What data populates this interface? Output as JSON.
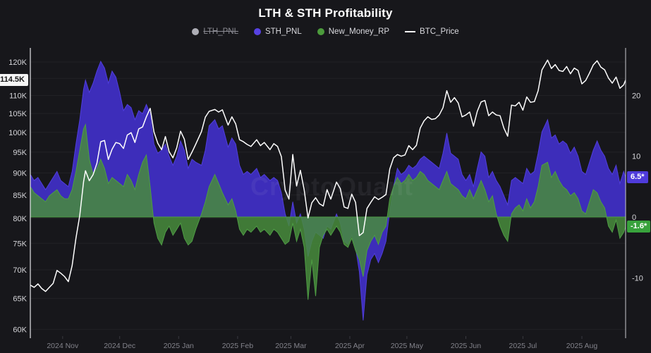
{
  "title": "LTH & STH Profitability",
  "watermark": "CryptoQuant",
  "legend": [
    {
      "label": "LTH_PNL",
      "color": "#aeaeb6",
      "marker": "dot",
      "disabled": true
    },
    {
      "label": "STH_PNL",
      "color": "#5742e3",
      "marker": "dot",
      "disabled": false
    },
    {
      "label": "New_Money_RP",
      "color": "#4c9b3c",
      "marker": "dot",
      "disabled": false
    },
    {
      "label": "BTC_Price",
      "color": "#ffffff",
      "marker": "line",
      "disabled": false
    }
  ],
  "badges": {
    "btc": {
      "text": "114.5K",
      "value": 114.5
    },
    "sth": {
      "text": "6.5*",
      "value": 6.5
    },
    "nm": {
      "text": "-1.6*",
      "value": -1.6
    }
  },
  "chart_data": {
    "type": "area+line",
    "left_axis": {
      "scale": "log",
      "unit": "K USD",
      "ylim": [
        60,
        120
      ],
      "grid_values": [
        120,
        115,
        110,
        105,
        100,
        95,
        90,
        85,
        80,
        75,
        70,
        65,
        60
      ],
      "tick_labels": [
        "120K",
        "110K",
        "105K",
        "100K",
        "95K",
        "90K",
        "85K",
        "80K",
        "75K",
        "70K",
        "65K",
        "60K"
      ],
      "tick_values": [
        120,
        110,
        105,
        100,
        95,
        90,
        85,
        80,
        75,
        70,
        65,
        60
      ]
    },
    "right_axis": {
      "scale": "linear",
      "ylim": [
        -19.9,
        27.6
      ],
      "tick_labels": [
        "20",
        "10",
        "0",
        "-10"
      ],
      "tick_values": [
        20,
        10,
        0,
        -10
      ]
    },
    "x_axis": {
      "start": "2024-10-15",
      "end": "2025-08-24",
      "months": [
        {
          "label": "2024 Nov",
          "date": "2024-11-01"
        },
        {
          "label": "2024 Dec",
          "date": "2024-12-01"
        },
        {
          "label": "2025 Jan",
          "date": "2025-01-01"
        },
        {
          "label": "2025 Feb",
          "date": "2025-02-01"
        },
        {
          "label": "2025 Mar",
          "date": "2025-03-01"
        },
        {
          "label": "2025 Apr",
          "date": "2025-04-01"
        },
        {
          "label": "2025 May",
          "date": "2025-05-01"
        },
        {
          "label": "2025 Jun",
          "date": "2025-06-01"
        },
        {
          "label": "2025 Jul",
          "date": "2025-07-01"
        },
        {
          "label": "2025 Aug",
          "date": "2025-08-01"
        }
      ]
    },
    "series": [
      {
        "name": "STH_PNL",
        "axis": "right",
        "kind": "area",
        "fill": "#3d2dba",
        "stroke": "#503edc",
        "col": 2
      },
      {
        "name": "New_Money_RP",
        "axis": "right",
        "kind": "area",
        "fill": "rgba(72,140,60,0.85)",
        "stroke": "#4e9c44",
        "col": 3
      },
      {
        "name": "BTC_Price",
        "axis": "left",
        "kind": "line",
        "stroke": "#ffffff",
        "col": 1
      }
    ],
    "columns": [
      "date",
      "btc_price_k",
      "sth_pnl",
      "new_money_rp"
    ],
    "points": [
      [
        "2024-10-15",
        67.3,
        7.0,
        5.0
      ],
      [
        "2024-10-17",
        66.9,
        6.0,
        4.0
      ],
      [
        "2024-10-19",
        67.5,
        6.5,
        3.5
      ],
      [
        "2024-10-21",
        66.7,
        5.5,
        3.0
      ],
      [
        "2024-10-23",
        66.2,
        4.5,
        2.5
      ],
      [
        "2024-10-25",
        66.9,
        5.5,
        3.5
      ],
      [
        "2024-10-27",
        67.6,
        6.5,
        4.0
      ],
      [
        "2024-10-29",
        69.9,
        7.5,
        4.5
      ],
      [
        "2024-10-31",
        69.4,
        6.0,
        3.5
      ],
      [
        "2024-11-02",
        68.8,
        5.5,
        3.0
      ],
      [
        "2024-11-04",
        67.9,
        5.0,
        3.0
      ],
      [
        "2024-11-06",
        70.8,
        7.5,
        4.5
      ],
      [
        "2024-11-08",
        76.0,
        12.0,
        7.5
      ],
      [
        "2024-11-10",
        80.6,
        16.0,
        11.0
      ],
      [
        "2024-11-12",
        88.0,
        21.0,
        14.5
      ],
      [
        "2024-11-13",
        90.5,
        22.5,
        15.2
      ],
      [
        "2024-11-15",
        88.2,
        20.5,
        9.5
      ],
      [
        "2024-11-17",
        89.6,
        22.0,
        7.0
      ],
      [
        "2024-11-19",
        92.3,
        24.0,
        8.0
      ],
      [
        "2024-11-21",
        97.6,
        25.6,
        9.5
      ],
      [
        "2024-11-23",
        97.9,
        24.5,
        8.0
      ],
      [
        "2024-11-25",
        93.2,
        22.0,
        5.5
      ],
      [
        "2024-11-27",
        95.7,
        24.0,
        6.5
      ],
      [
        "2024-11-29",
        97.4,
        23.0,
        6.0
      ],
      [
        "2024-12-01",
        97.1,
        20.5,
        5.5
      ],
      [
        "2024-12-03",
        95.9,
        17.5,
        5.0
      ],
      [
        "2024-12-05",
        99.3,
        18.5,
        7.0
      ],
      [
        "2024-12-07",
        99.9,
        18.0,
        6.0
      ],
      [
        "2024-12-09",
        97.4,
        16.0,
        4.5
      ],
      [
        "2024-12-11",
        100.9,
        17.5,
        7.0
      ],
      [
        "2024-12-13",
        101.4,
        17.0,
        9.0
      ],
      [
        "2024-12-15",
        104.1,
        18.5,
        10.2
      ],
      [
        "2024-12-17",
        106.4,
        17.0,
        5.0
      ],
      [
        "2024-12-19",
        100.1,
        12.0,
        -1.0
      ],
      [
        "2024-12-21",
        97.2,
        10.5,
        -3.5
      ],
      [
        "2024-12-23",
        95.6,
        11.0,
        -4.6
      ],
      [
        "2024-12-25",
        98.9,
        12.0,
        -2.5
      ],
      [
        "2024-12-27",
        95.1,
        10.0,
        -1.5
      ],
      [
        "2024-12-29",
        93.6,
        8.5,
        -3.0
      ],
      [
        "2024-12-31",
        96.1,
        10.0,
        -2.0
      ],
      [
        "2025-01-02",
        100.3,
        12.5,
        -1.0
      ],
      [
        "2025-01-04",
        98.2,
        11.0,
        -3.5
      ],
      [
        "2025-01-06",
        93.2,
        8.0,
        -4.6
      ],
      [
        "2025-01-08",
        95.0,
        9.5,
        -4.0
      ],
      [
        "2025-01-10",
        97.0,
        9.0,
        -2.0
      ],
      [
        "2025-01-13",
        100.2,
        8.5,
        0.5
      ],
      [
        "2025-01-15",
        104.0,
        11.0,
        2.5
      ],
      [
        "2025-01-17",
        105.6,
        15.0,
        5.0
      ],
      [
        "2025-01-20",
        106.1,
        16.0,
        7.0
      ],
      [
        "2025-01-22",
        105.4,
        14.5,
        5.5
      ],
      [
        "2025-01-24",
        106.0,
        15.0,
        4.0
      ],
      [
        "2025-01-27",
        101.9,
        11.5,
        2.0
      ],
      [
        "2025-01-29",
        104.1,
        13.0,
        3.0
      ],
      [
        "2025-01-31",
        102.2,
        12.0,
        1.0
      ],
      [
        "2025-02-02",
        98.1,
        8.5,
        -2.0
      ],
      [
        "2025-02-04",
        97.6,
        7.0,
        -3.0
      ],
      [
        "2025-02-06",
        96.9,
        7.5,
        -2.0
      ],
      [
        "2025-02-08",
        96.4,
        7.0,
        -2.5
      ],
      [
        "2025-02-11",
        98.1,
        8.0,
        -1.5
      ],
      [
        "2025-02-13",
        96.6,
        6.5,
        -2.5
      ],
      [
        "2025-02-15",
        97.4,
        7.0,
        -2.0
      ],
      [
        "2025-02-18",
        95.6,
        6.0,
        -3.0
      ],
      [
        "2025-02-20",
        97.1,
        6.5,
        -2.0
      ],
      [
        "2025-02-22",
        96.4,
        6.0,
        -2.5
      ],
      [
        "2025-02-24",
        93.9,
        4.0,
        -3.5
      ],
      [
        "2025-02-26",
        86.1,
        0.5,
        -4.5
      ],
      [
        "2025-02-28",
        84.1,
        -1.5,
        -4.0
      ],
      [
        "2025-03-02",
        94.4,
        2.5,
        -1.0
      ],
      [
        "2025-03-04",
        87.0,
        -1.0,
        -4.0
      ],
      [
        "2025-03-06",
        90.6,
        0.5,
        -2.0
      ],
      [
        "2025-03-08",
        86.1,
        -2.0,
        -5.0
      ],
      [
        "2025-03-10",
        80.1,
        -6.5,
        -13.6
      ],
      [
        "2025-03-12",
        83.3,
        -4.0,
        -7.0
      ],
      [
        "2025-03-14",
        84.4,
        -2.5,
        -13.0
      ],
      [
        "2025-03-16",
        83.1,
        -3.0,
        -5.0
      ],
      [
        "2025-03-18",
        82.6,
        -3.5,
        -3.0
      ],
      [
        "2025-03-20",
        86.2,
        -1.5,
        -2.0
      ],
      [
        "2025-03-22",
        84.1,
        -2.0,
        -3.0
      ],
      [
        "2025-03-25",
        87.9,
        0.5,
        -1.5
      ],
      [
        "2025-03-27",
        86.4,
        -1.0,
        -2.5
      ],
      [
        "2025-03-29",
        82.4,
        -4.0,
        -4.5
      ],
      [
        "2025-03-31",
        82.1,
        -4.5,
        -5.0
      ],
      [
        "2025-04-02",
        85.2,
        -3.0,
        -3.5
      ],
      [
        "2025-04-04",
        83.4,
        -5.0,
        -5.5
      ],
      [
        "2025-04-06",
        76.5,
        -9.0,
        -7.0
      ],
      [
        "2025-04-08",
        77.1,
        -17.0,
        -9.8
      ],
      [
        "2025-04-10",
        82.1,
        -9.5,
        -5.5
      ],
      [
        "2025-04-12",
        83.4,
        -7.0,
        -4.0
      ],
      [
        "2025-04-14",
        84.6,
        -6.0,
        -3.0
      ],
      [
        "2025-04-16",
        84.0,
        -7.5,
        -4.5
      ],
      [
        "2025-04-18",
        84.5,
        -6.0,
        -2.5
      ],
      [
        "2025-04-20",
        85.1,
        -4.0,
        -1.5
      ],
      [
        "2025-04-22",
        90.9,
        1.0,
        3.0
      ],
      [
        "2025-04-24",
        93.6,
        5.0,
        5.0
      ],
      [
        "2025-04-26",
        94.4,
        8.0,
        6.5
      ],
      [
        "2025-04-28",
        94.0,
        7.0,
        5.5
      ],
      [
        "2025-04-30",
        94.3,
        7.5,
        6.0
      ],
      [
        "2025-05-02",
        96.6,
        8.5,
        7.0
      ],
      [
        "2025-05-04",
        95.6,
        8.0,
        6.0
      ],
      [
        "2025-05-06",
        96.7,
        8.5,
        6.5
      ],
      [
        "2025-05-08",
        101.1,
        9.5,
        7.5
      ],
      [
        "2025-05-10",
        103.0,
        10.0,
        7.0
      ],
      [
        "2025-05-12",
        104.1,
        9.5,
        6.0
      ],
      [
        "2025-05-14",
        103.4,
        9.0,
        5.5
      ],
      [
        "2025-05-16",
        103.6,
        8.5,
        5.0
      ],
      [
        "2025-05-18",
        104.6,
        8.0,
        4.5
      ],
      [
        "2025-05-20",
        106.6,
        10.5,
        6.0
      ],
      [
        "2025-05-22",
        111.4,
        13.8,
        7.5
      ],
      [
        "2025-05-24",
        108.1,
        10.5,
        5.5
      ],
      [
        "2025-05-26",
        109.4,
        10.0,
        5.0
      ],
      [
        "2025-05-28",
        107.9,
        9.5,
        4.5
      ],
      [
        "2025-05-30",
        104.1,
        7.0,
        3.5
      ],
      [
        "2025-06-01",
        104.6,
        6.0,
        3.0
      ],
      [
        "2025-06-03",
        105.4,
        7.0,
        4.5
      ],
      [
        "2025-06-05",
        101.6,
        5.0,
        3.0
      ],
      [
        "2025-06-07",
        105.6,
        8.0,
        4.5
      ],
      [
        "2025-06-09",
        108.2,
        10.7,
        6.0
      ],
      [
        "2025-06-11",
        108.6,
        10.0,
        4.5
      ],
      [
        "2025-06-13",
        104.4,
        6.5,
        2.5
      ],
      [
        "2025-06-15",
        105.4,
        7.5,
        3.5
      ],
      [
        "2025-06-17",
        104.6,
        6.0,
        0.5
      ],
      [
        "2025-06-19",
        104.4,
        5.0,
        -1.5
      ],
      [
        "2025-06-21",
        101.1,
        3.5,
        -3.0
      ],
      [
        "2025-06-23",
        99.0,
        2.0,
        -4.0
      ],
      [
        "2025-06-25",
        107.3,
        6.0,
        0.5
      ],
      [
        "2025-06-27",
        107.1,
        6.5,
        1.5
      ],
      [
        "2025-06-29",
        108.1,
        6.0,
        2.0
      ],
      [
        "2025-07-01",
        105.9,
        5.5,
        1.0
      ],
      [
        "2025-07-03",
        109.6,
        8.0,
        3.0
      ],
      [
        "2025-07-05",
        108.1,
        7.0,
        1.5
      ],
      [
        "2025-07-07",
        108.3,
        7.5,
        2.5
      ],
      [
        "2025-07-09",
        111.4,
        10.5,
        5.0
      ],
      [
        "2025-07-11",
        117.6,
        14.0,
        8.5
      ],
      [
        "2025-07-14",
        120.6,
        16.0,
        9.0
      ],
      [
        "2025-07-16",
        118.0,
        13.0,
        6.5
      ],
      [
        "2025-07-18",
        119.2,
        13.5,
        7.5
      ],
      [
        "2025-07-20",
        117.4,
        12.0,
        6.0
      ],
      [
        "2025-07-22",
        117.1,
        12.5,
        5.0
      ],
      [
        "2025-07-24",
        118.6,
        12.0,
        4.5
      ],
      [
        "2025-07-26",
        116.4,
        10.5,
        3.5
      ],
      [
        "2025-07-28",
        118.1,
        11.5,
        4.0
      ],
      [
        "2025-07-30",
        117.4,
        10.0,
        3.0
      ],
      [
        "2025-08-01",
        113.4,
        7.5,
        1.0
      ],
      [
        "2025-08-03",
        114.4,
        7.0,
        0.5
      ],
      [
        "2025-08-05",
        116.6,
        9.0,
        2.5
      ],
      [
        "2025-08-07",
        119.1,
        11.0,
        4.5
      ],
      [
        "2025-08-09",
        120.4,
        12.5,
        4.0
      ],
      [
        "2025-08-11",
        118.4,
        11.0,
        2.5
      ],
      [
        "2025-08-13",
        117.6,
        10.0,
        1.5
      ],
      [
        "2025-08-15",
        115.1,
        8.0,
        -1.5
      ],
      [
        "2025-08-17",
        113.6,
        7.0,
        -2.5
      ],
      [
        "2025-08-19",
        115.4,
        8.5,
        -0.5
      ],
      [
        "2025-08-21",
        112.1,
        5.5,
        -3.5
      ],
      [
        "2025-08-23",
        113.1,
        7.5,
        -2.5
      ],
      [
        "2025-08-24",
        114.5,
        6.5,
        -1.6
      ]
    ]
  }
}
